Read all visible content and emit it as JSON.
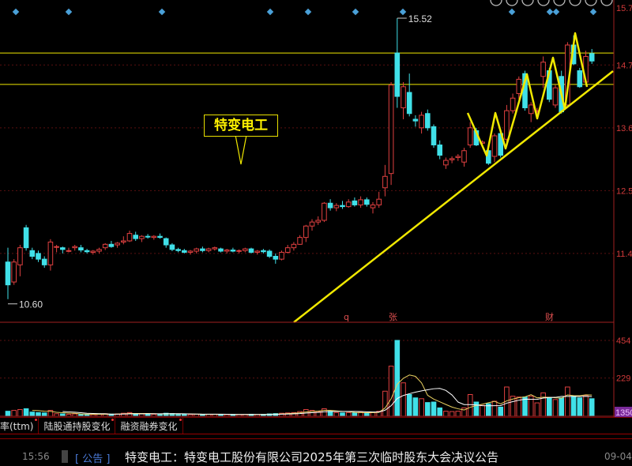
{
  "chart_data": {
    "type": "candlestick",
    "title": "",
    "price_axis": {
      "ticks": [
        "15.7",
        "14.7",
        "13.6",
        "12.5",
        "11.4"
      ],
      "range": [
        10.3,
        15.85
      ]
    },
    "volume_axis": {
      "ticks": [
        "454",
        "229"
      ],
      "cursor_value": "1350",
      "range": [
        0,
        470
      ]
    },
    "colors": {
      "up": "#e04040",
      "down": "#40e0e8",
      "ma_fast": "#ffffff",
      "ma_slow": "#e8d060",
      "annotation": "#f0e800",
      "axis": "#d23a3a"
    },
    "high_label": "15.52",
    "low_label": "10.60",
    "horizontal_lines": [
      14.91,
      14.36
    ],
    "event_markers": [
      "q",
      "张",
      "财"
    ],
    "candles": [
      [
        11.25,
        11.5,
        10.6,
        10.85,
        30
      ],
      [
        10.9,
        11.3,
        10.85,
        11.25,
        35
      ],
      [
        11.2,
        11.55,
        11.0,
        11.5,
        40
      ],
      [
        11.85,
        11.9,
        11.45,
        11.5,
        45
      ],
      [
        11.45,
        11.5,
        11.3,
        11.35,
        25
      ],
      [
        11.4,
        11.45,
        11.25,
        11.3,
        22
      ],
      [
        11.3,
        11.35,
        11.15,
        11.2,
        20
      ],
      [
        11.2,
        11.65,
        11.1,
        11.6,
        35
      ],
      [
        11.52,
        11.55,
        11.42,
        11.52,
        15
      ],
      [
        11.5,
        11.52,
        11.4,
        11.47,
        14
      ],
      [
        11.45,
        11.5,
        11.42,
        11.45,
        12
      ],
      [
        11.5,
        11.55,
        11.45,
        11.52,
        14
      ],
      [
        11.5,
        11.55,
        11.42,
        11.46,
        12
      ],
      [
        11.45,
        11.48,
        11.4,
        11.43,
        10
      ],
      [
        11.42,
        11.46,
        11.38,
        11.44,
        10
      ],
      [
        11.44,
        11.5,
        11.4,
        11.47,
        12
      ],
      [
        11.5,
        11.58,
        11.46,
        11.56,
        15
      ],
      [
        11.56,
        11.62,
        11.5,
        11.52,
        13
      ],
      [
        11.55,
        11.6,
        11.5,
        11.58,
        14
      ],
      [
        11.6,
        11.7,
        11.56,
        11.62,
        18
      ],
      [
        11.62,
        11.8,
        11.6,
        11.75,
        22
      ],
      [
        11.72,
        11.78,
        11.62,
        11.66,
        16
      ],
      [
        11.66,
        11.72,
        11.6,
        11.7,
        14
      ],
      [
        11.7,
        11.74,
        11.66,
        11.69,
        12
      ],
      [
        11.68,
        11.72,
        11.64,
        11.7,
        12
      ],
      [
        11.7,
        11.75,
        11.66,
        11.68,
        13
      ],
      [
        11.66,
        11.68,
        11.5,
        11.55,
        18
      ],
      [
        11.55,
        11.58,
        11.44,
        11.47,
        16
      ],
      [
        11.47,
        11.5,
        11.42,
        11.45,
        12
      ],
      [
        11.45,
        11.48,
        11.4,
        11.42,
        11
      ],
      [
        11.42,
        11.46,
        11.38,
        11.44,
        10
      ],
      [
        11.44,
        11.5,
        11.4,
        11.48,
        12
      ],
      [
        11.48,
        11.52,
        11.42,
        11.45,
        11
      ],
      [
        11.45,
        11.5,
        11.42,
        11.48,
        12
      ],
      [
        11.48,
        11.52,
        11.45,
        11.5,
        12
      ],
      [
        11.48,
        11.5,
        11.42,
        11.44,
        11
      ],
      [
        11.44,
        11.48,
        11.4,
        11.46,
        10
      ],
      [
        11.46,
        11.5,
        11.42,
        11.44,
        10
      ],
      [
        11.44,
        11.47,
        11.4,
        11.45,
        10
      ],
      [
        11.45,
        11.5,
        11.42,
        11.48,
        11
      ],
      [
        11.48,
        11.5,
        11.4,
        11.42,
        12
      ],
      [
        11.42,
        11.46,
        11.38,
        11.44,
        10
      ],
      [
        11.45,
        11.48,
        11.4,
        11.43,
        11
      ],
      [
        11.44,
        11.47,
        11.32,
        11.35,
        14
      ],
      [
        11.35,
        11.4,
        11.22,
        11.3,
        16
      ],
      [
        11.3,
        11.45,
        11.28,
        11.42,
        18
      ],
      [
        11.42,
        11.55,
        11.4,
        11.5,
        20
      ],
      [
        11.5,
        11.6,
        11.45,
        11.56,
        22
      ],
      [
        11.56,
        11.72,
        11.55,
        11.68,
        28
      ],
      [
        11.68,
        11.9,
        11.6,
        11.88,
        40
      ],
      [
        11.88,
        12.0,
        11.8,
        11.95,
        35
      ],
      [
        11.95,
        12.05,
        11.9,
        11.98,
        28
      ],
      [
        11.98,
        12.3,
        11.95,
        12.28,
        45
      ],
      [
        12.28,
        12.35,
        12.15,
        12.2,
        30
      ],
      [
        12.2,
        12.28,
        12.14,
        12.24,
        22
      ],
      [
        12.24,
        12.32,
        12.18,
        12.22,
        20
      ],
      [
        12.22,
        12.35,
        12.2,
        12.3,
        22
      ],
      [
        12.32,
        12.38,
        12.22,
        12.25,
        20
      ],
      [
        12.25,
        12.4,
        12.2,
        12.34,
        24
      ],
      [
        12.34,
        12.38,
        12.22,
        12.26,
        20
      ],
      [
        12.2,
        12.3,
        12.1,
        12.25,
        22
      ],
      [
        12.25,
        12.48,
        12.2,
        12.35,
        30
      ],
      [
        12.55,
        12.95,
        12.4,
        12.75,
        150
      ],
      [
        12.8,
        14.4,
        12.6,
        14.35,
        300
      ],
      [
        14.91,
        15.52,
        13.95,
        14.15,
        454
      ],
      [
        13.95,
        14.4,
        13.75,
        14.32,
        200
      ],
      [
        14.22,
        14.55,
        13.8,
        13.85,
        130
      ],
      [
        13.75,
        13.82,
        13.62,
        13.72,
        110
      ],
      [
        13.6,
        13.88,
        13.5,
        13.82,
        105
      ],
      [
        13.85,
        13.92,
        13.55,
        13.6,
        82
      ],
      [
        13.62,
        13.66,
        13.25,
        13.3,
        85
      ],
      [
        13.3,
        13.38,
        13.05,
        13.12,
        50
      ],
      [
        12.95,
        13.08,
        12.88,
        13.03,
        30
      ],
      [
        13.04,
        13.1,
        12.98,
        13.06,
        28
      ],
      [
        13.08,
        13.14,
        13.02,
        13.1,
        30
      ],
      [
        13.0,
        13.25,
        12.92,
        13.2,
        50
      ],
      [
        13.3,
        13.7,
        13.25,
        13.6,
        130
      ],
      [
        13.55,
        13.6,
        13.28,
        13.3,
        85
      ],
      [
        13.33,
        13.38,
        13.28,
        13.35,
        65
      ],
      [
        13.2,
        13.25,
        12.95,
        12.98,
        75
      ],
      [
        13.1,
        13.5,
        13.0,
        13.46,
        90
      ],
      [
        13.5,
        13.55,
        13.08,
        13.12,
        55
      ],
      [
        13.4,
        14.0,
        13.35,
        13.9,
        175
      ],
      [
        13.9,
        14.2,
        13.85,
        14.12,
        120
      ],
      [
        14.2,
        14.5,
        14.1,
        14.45,
        115
      ],
      [
        14.55,
        14.6,
        13.9,
        13.95,
        115
      ],
      [
        13.85,
        14.05,
        13.7,
        14.0,
        120
      ],
      [
        13.9,
        13.95,
        13.85,
        13.9,
        80
      ],
      [
        14.5,
        14.85,
        14.3,
        14.75,
        140
      ],
      [
        14.6,
        14.65,
        14.05,
        14.1,
        112
      ],
      [
        14.0,
        14.35,
        13.95,
        14.3,
        100
      ],
      [
        14.5,
        14.6,
        13.85,
        13.88,
        110
      ],
      [
        14.0,
        15.1,
        13.95,
        15.05,
        175
      ],
      [
        15.05,
        15.22,
        14.7,
        14.72,
        120
      ],
      [
        14.6,
        14.65,
        14.3,
        14.32,
        110
      ],
      [
        14.4,
        14.95,
        14.35,
        14.85,
        125
      ],
      [
        14.9,
        14.98,
        14.72,
        14.77,
        105
      ]
    ]
  },
  "toolbar": {
    "icons": [
      "clock-icon",
      "hand-icon",
      "play-icon",
      "undo-icon",
      "scissors-icon",
      "square-icon",
      "zoom-in-icon",
      "zoom-out-icon"
    ]
  },
  "annotation": {
    "label": "特变电工"
  },
  "tabs": [
    {
      "label": "率(ttm)"
    },
    {
      "label": "陆股通持股变化"
    },
    {
      "label": "融资融券变化"
    }
  ],
  "news": {
    "time": "15:56",
    "tag": "[ 公告 ]",
    "title": "特变电工：特变电工股份有限公司2025年第三次临时股东大会决议公告",
    "date": "09-04"
  }
}
